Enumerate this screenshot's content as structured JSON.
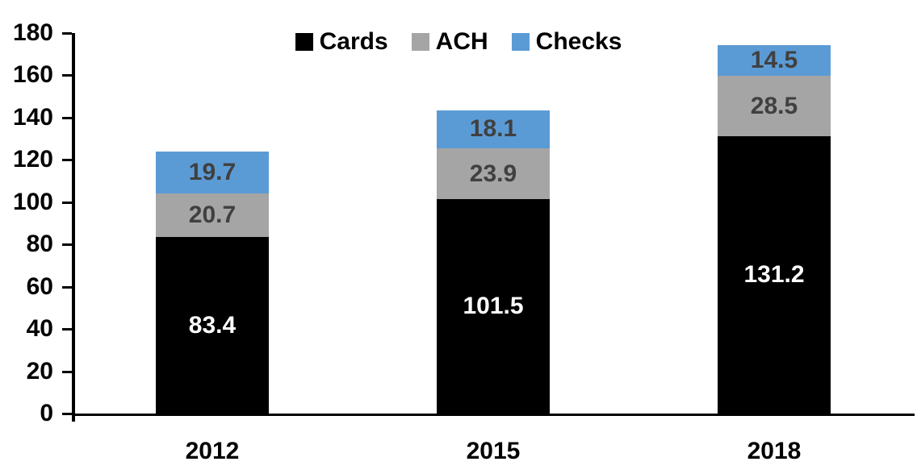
{
  "chart_data": {
    "type": "bar",
    "stacked": true,
    "title": "",
    "categories": [
      "2012",
      "2015",
      "2018"
    ],
    "series": [
      {
        "name": "Cards",
        "color": "#000000",
        "label_color": "#ffffff",
        "values": [
          83.4,
          101.5,
          131.2
        ]
      },
      {
        "name": "ACH",
        "color": "#a5a5a5",
        "label_color": "#404040",
        "values": [
          20.7,
          23.9,
          28.5
        ]
      },
      {
        "name": "Checks",
        "color": "#5b9bd5",
        "label_color": "#404040",
        "values": [
          19.7,
          18.1,
          14.5
        ]
      }
    ],
    "xlabel": "",
    "ylabel": "",
    "ylim": [
      0,
      180
    ],
    "y_tick_step": 20,
    "y_tick_labels": [
      "0",
      "20",
      "40",
      "60",
      "80",
      "100",
      "120",
      "140",
      "160",
      "180"
    ],
    "legend_position": "top-center",
    "legend_entries": [
      "Cards",
      "ACH",
      "Checks"
    ],
    "grid": false,
    "axis_color": "#000000",
    "background_color": "#ffffff"
  }
}
